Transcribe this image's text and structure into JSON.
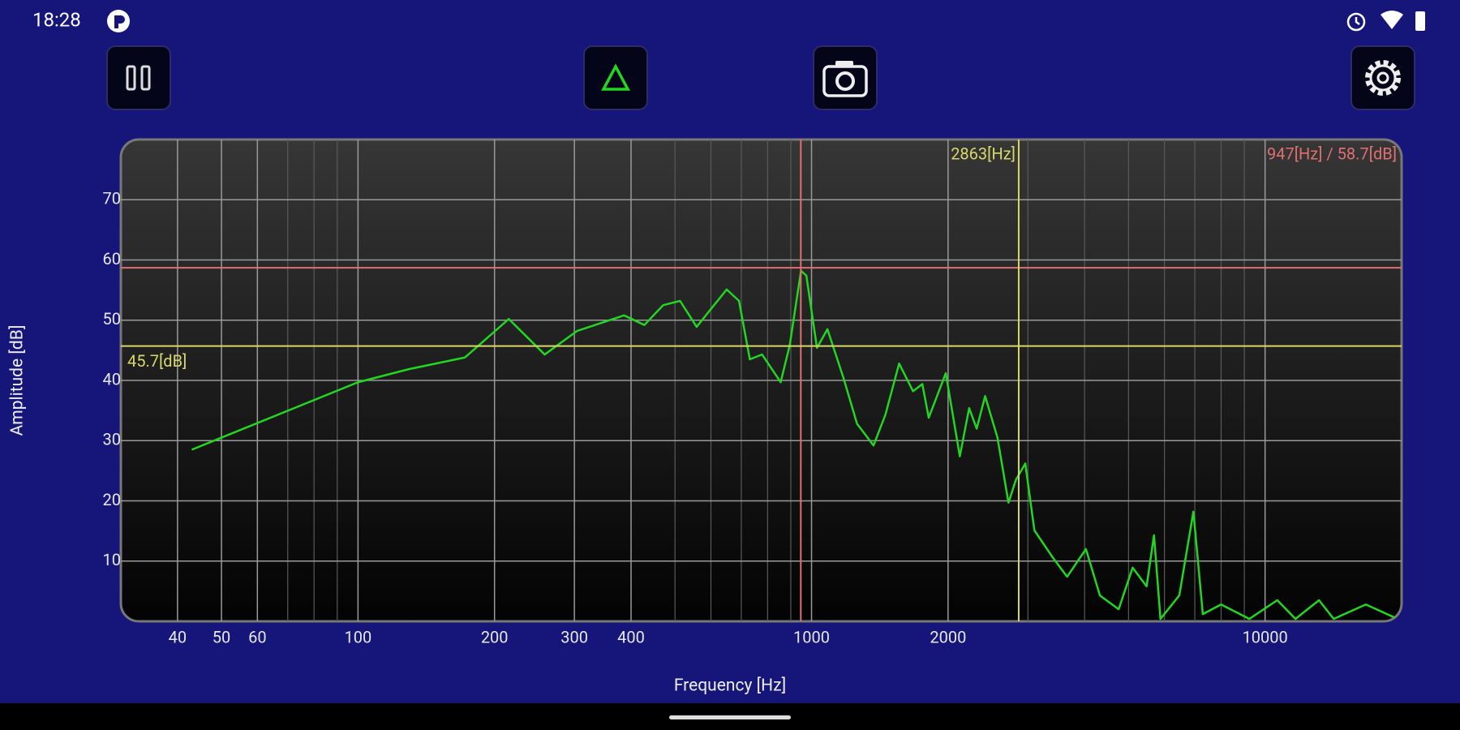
{
  "status_bar": {
    "time": "18:28"
  },
  "chart_data": {
    "type": "line",
    "x_label": "Frequency [Hz]",
    "y_label": "Amplitude [dB]",
    "x_scale": "log",
    "grid": true,
    "xlim": [
      30,
      20000
    ],
    "ylim": [
      0,
      80
    ],
    "xticks": [
      40,
      50,
      60,
      100,
      200,
      300,
      400,
      1000,
      2000,
      10000
    ],
    "x_minor_grid": [
      70,
      80,
      90,
      500,
      600,
      700,
      800,
      900,
      3000,
      4000,
      5000,
      6000,
      7000,
      8000,
      9000
    ],
    "yticks": [
      10,
      20,
      30,
      40,
      50,
      60,
      70
    ],
    "x": [
      43,
      100,
      130,
      172,
      215,
      258,
      304,
      386,
      428,
      471,
      513,
      558,
      650,
      692,
      731,
      778,
      855,
      895,
      948,
      974,
      1028,
      1084,
      1175,
      1260,
      1370,
      1455,
      1560,
      1674,
      1755,
      1813,
      1977,
      2123,
      2226,
      2313,
      2414,
      2570,
      2718,
      2823,
      2960,
      3100,
      3410,
      3660,
      4027,
      4323,
      4755,
      5105,
      5480,
      5690,
      5880,
      6470,
      6950,
      7290,
      8000,
      9230,
      10640,
      11670,
      13150,
      14170,
      16680,
      19600
    ],
    "series": [
      {
        "color": "#22d622",
        "values": [
          28.5,
          39.7,
          41.9,
          43.8,
          50.2,
          44.3,
          48.2,
          50.8,
          49.2,
          52.5,
          53.2,
          48.9,
          55.1,
          53.2,
          43.5,
          44.3,
          39.7,
          45.8,
          58.2,
          57.4,
          45.4,
          48.5,
          40.5,
          32.8,
          29.2,
          34.3,
          42.8,
          38.2,
          39.4,
          33.8,
          41.2,
          27.4,
          35.4,
          32.0,
          37.4,
          30.5,
          19.7,
          23.5,
          26.2,
          15.1,
          10.5,
          7.4,
          12.0,
          4.3,
          2.0,
          8.9,
          5.8,
          14.3,
          0.4,
          4.3,
          18.2,
          1.2,
          2.8,
          0.4,
          3.5,
          0.4,
          3.5,
          0.4,
          2.8,
          0.4
        ]
      }
    ],
    "cursors": [
      {
        "x": 947,
        "y": 58.7,
        "label": "947[Hz] / 58.7[dB]",
        "color": "#e07070"
      },
      {
        "x": 2863,
        "y": 45.7,
        "x_text": "2863[Hz]",
        "y_text": "45.7[dB]",
        "color": "#d8d86a"
      }
    ]
  }
}
